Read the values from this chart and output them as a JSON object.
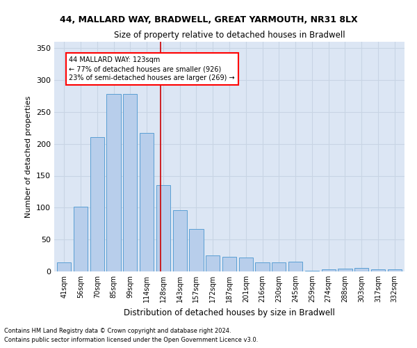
{
  "title1": "44, MALLARD WAY, BRADWELL, GREAT YARMOUTH, NR31 8LX",
  "title2": "Size of property relative to detached houses in Bradwell",
  "xlabel": "Distribution of detached houses by size in Bradwell",
  "ylabel": "Number of detached properties",
  "footer1": "Contains HM Land Registry data © Crown copyright and database right 2024.",
  "footer2": "Contains public sector information licensed under the Open Government Licence v3.0.",
  "categories": [
    "41sqm",
    "56sqm",
    "70sqm",
    "85sqm",
    "99sqm",
    "114sqm",
    "128sqm",
    "143sqm",
    "157sqm",
    "172sqm",
    "187sqm",
    "201sqm",
    "216sqm",
    "230sqm",
    "245sqm",
    "259sqm",
    "274sqm",
    "288sqm",
    "303sqm",
    "317sqm",
    "332sqm"
  ],
  "values": [
    14,
    102,
    210,
    278,
    278,
    217,
    135,
    96,
    67,
    25,
    23,
    22,
    14,
    14,
    15,
    1,
    3,
    4,
    5,
    3,
    3
  ],
  "bar_color": "#b8ceeb",
  "bar_edge_color": "#5a9fd4",
  "grid_color": "#c8d4e4",
  "background_color": "#dce6f4",
  "vline_x_index": 6,
  "vline_color": "#cc0000",
  "annotation_text": "44 MALLARD WAY: 123sqm\n← 77% of detached houses are smaller (926)\n23% of semi-detached houses are larger (269) →",
  "ylim": [
    0,
    360
  ],
  "yticks": [
    0,
    50,
    100,
    150,
    200,
    250,
    300,
    350
  ]
}
